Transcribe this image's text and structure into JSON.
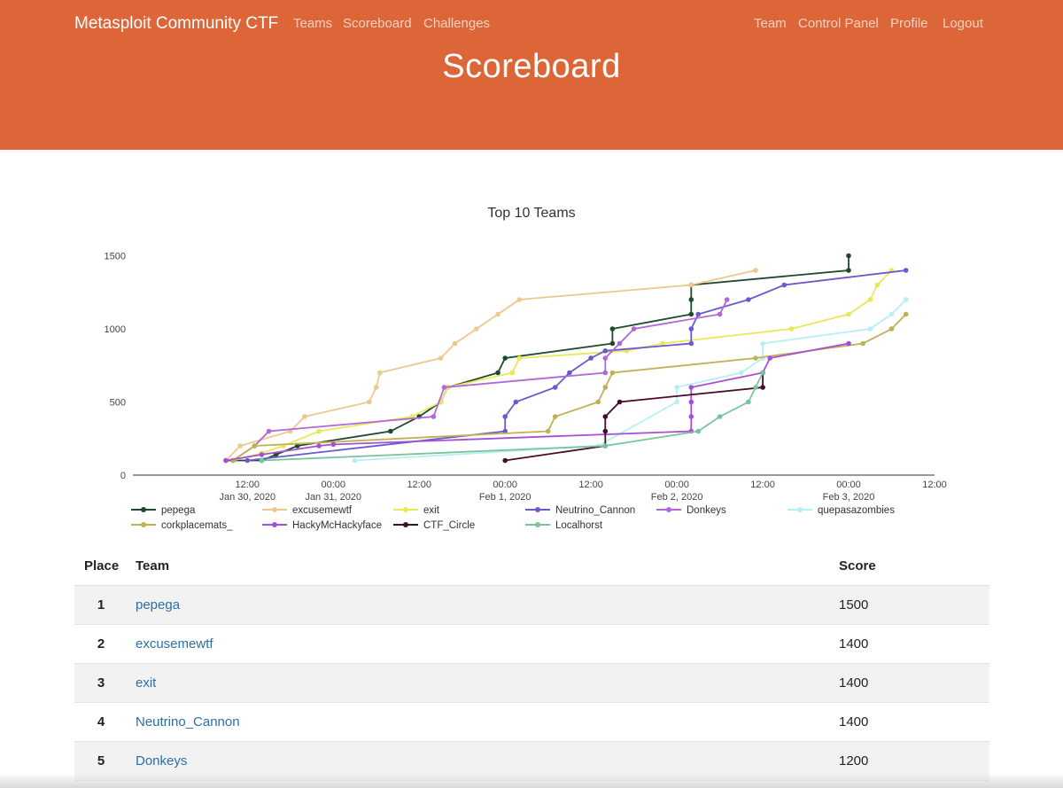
{
  "nav": {
    "brand": "Metasploit Community CTF",
    "left": [
      "Teams",
      "Scoreboard",
      "Challenges"
    ],
    "right": [
      "Team",
      "Control Panel",
      "Profile",
      "Logout"
    ]
  },
  "page_title": "Scoreboard",
  "chart_data": {
    "type": "line",
    "title": "Top 10 Teams",
    "xlabel": "",
    "ylabel": "",
    "xlim": [
      "2020-01-29 20:00",
      "2020-02-03 12:00"
    ],
    "ylim": [
      0,
      1600
    ],
    "yticks": [
      0,
      500,
      1000,
      1500
    ],
    "xticks": [
      {
        "t": "2020-01-30 12:00",
        "label": "12:00",
        "sublabel": "Jan 30, 2020"
      },
      {
        "t": "2020-01-31 00:00",
        "label": "00:00",
        "sublabel": "Jan 31, 2020"
      },
      {
        "t": "2020-01-31 12:00",
        "label": "12:00",
        "sublabel": ""
      },
      {
        "t": "2020-02-01 00:00",
        "label": "00:00",
        "sublabel": "Feb 1, 2020"
      },
      {
        "t": "2020-02-01 12:00",
        "label": "12:00",
        "sublabel": ""
      },
      {
        "t": "2020-02-02 00:00",
        "label": "00:00",
        "sublabel": "Feb 2, 2020"
      },
      {
        "t": "2020-02-02 12:00",
        "label": "12:00",
        "sublabel": ""
      },
      {
        "t": "2020-02-03 00:00",
        "label": "00:00",
        "sublabel": "Feb 3, 2020"
      },
      {
        "t": "2020-02-03 12:00",
        "label": "12:00",
        "sublabel": ""
      }
    ],
    "grid": false,
    "legend_position": "bottom",
    "series": [
      {
        "name": "pepega",
        "color": "#1f4a2c",
        "points": [
          [
            "2020-01-30 09:00",
            100
          ],
          [
            "2020-01-30 14:00",
            100
          ],
          [
            "2020-01-30 16:00",
            140
          ],
          [
            "2020-01-30 19:00",
            200
          ],
          [
            "2020-01-31 08:00",
            300
          ],
          [
            "2020-01-31 12:00",
            400
          ],
          [
            "2020-01-31 15:00",
            500
          ],
          [
            "2020-01-31 16:00",
            600
          ],
          [
            "2020-01-31 23:00",
            700
          ],
          [
            "2020-02-01 00:00",
            800
          ],
          [
            "2020-02-01 15:00",
            900
          ],
          [
            "2020-02-01 15:00",
            1000
          ],
          [
            "2020-02-02 02:00",
            1100
          ],
          [
            "2020-02-02 02:00",
            1200
          ],
          [
            "2020-02-02 02:00",
            1300
          ],
          [
            "2020-02-03 00:00",
            1400
          ],
          [
            "2020-02-03 00:00",
            1500
          ]
        ]
      },
      {
        "name": "excusemewtf",
        "color": "#ecc88c",
        "points": [
          [
            "2020-01-30 09:00",
            100
          ],
          [
            "2020-01-30 11:00",
            200
          ],
          [
            "2020-01-30 18:00",
            300
          ],
          [
            "2020-01-30 20:00",
            400
          ],
          [
            "2020-01-31 05:00",
            500
          ],
          [
            "2020-01-31 06:00",
            600
          ],
          [
            "2020-01-31 06:30",
            700
          ],
          [
            "2020-01-31 15:00",
            800
          ],
          [
            "2020-01-31 17:00",
            900
          ],
          [
            "2020-01-31 20:00",
            1000
          ],
          [
            "2020-01-31 23:00",
            1100
          ],
          [
            "2020-02-01 02:00",
            1200
          ],
          [
            "2020-02-02 02:00",
            1300
          ],
          [
            "2020-02-02 11:00",
            1400
          ]
        ]
      },
      {
        "name": "exit",
        "color": "#e9e75a",
        "points": [
          [
            "2020-01-30 10:00",
            100
          ],
          [
            "2020-01-30 14:00",
            150
          ],
          [
            "2020-01-30 17:00",
            200
          ],
          [
            "2020-01-30 22:00",
            300
          ],
          [
            "2020-01-31 11:00",
            400
          ],
          [
            "2020-01-31 15:00",
            500
          ],
          [
            "2020-01-31 16:00",
            600
          ],
          [
            "2020-02-01 01:00",
            700
          ],
          [
            "2020-02-01 02:00",
            800
          ],
          [
            "2020-02-01 17:00",
            850
          ],
          [
            "2020-02-01 22:00",
            900
          ],
          [
            "2020-02-02 16:00",
            1000
          ],
          [
            "2020-02-03 00:00",
            1100
          ],
          [
            "2020-02-03 03:00",
            1200
          ],
          [
            "2020-02-03 04:00",
            1300
          ],
          [
            "2020-02-03 06:00",
            1400
          ]
        ]
      },
      {
        "name": "Neutrino_Cannon",
        "color": "#6a5acd",
        "points": [
          [
            "2020-01-30 12:00",
            100
          ],
          [
            "2020-02-01 00:00",
            300
          ],
          [
            "2020-02-01 00:00",
            400
          ],
          [
            "2020-02-01 01:30",
            500
          ],
          [
            "2020-02-01 07:00",
            600
          ],
          [
            "2020-02-01 09:00",
            700
          ],
          [
            "2020-02-01 12:00",
            800
          ],
          [
            "2020-02-01 14:00",
            850
          ],
          [
            "2020-02-02 02:00",
            900
          ],
          [
            "2020-02-02 02:00",
            1000
          ],
          [
            "2020-02-02 03:00",
            1100
          ],
          [
            "2020-02-02 10:00",
            1200
          ],
          [
            "2020-02-02 15:00",
            1300
          ],
          [
            "2020-02-03 08:00",
            1400
          ]
        ]
      },
      {
        "name": "Donkeys",
        "color": "#b267d8",
        "points": [
          [
            "2020-01-30 10:00",
            100
          ],
          [
            "2020-01-30 13:00",
            200
          ],
          [
            "2020-01-30 15:00",
            300
          ],
          [
            "2020-01-31 14:00",
            400
          ],
          [
            "2020-01-31 15:30",
            600
          ],
          [
            "2020-02-01 14:00",
            700
          ],
          [
            "2020-02-01 14:00",
            800
          ],
          [
            "2020-02-01 16:00",
            900
          ],
          [
            "2020-02-01 18:00",
            1000
          ],
          [
            "2020-02-02 06:00",
            1100
          ],
          [
            "2020-02-02 07:00",
            1200
          ]
        ]
      },
      {
        "name": "quepasazombies",
        "color": "#b8eef4",
        "points": [
          [
            "2020-01-31 03:00",
            100
          ],
          [
            "2020-02-01 13:00",
            200
          ],
          [
            "2020-02-02 00:00",
            500
          ],
          [
            "2020-02-02 00:00",
            600
          ],
          [
            "2020-02-02 09:00",
            700
          ],
          [
            "2020-02-02 12:00",
            800
          ],
          [
            "2020-02-02 12:00",
            900
          ],
          [
            "2020-02-03 03:00",
            1000
          ],
          [
            "2020-02-03 06:00",
            1100
          ],
          [
            "2020-02-03 08:00",
            1200
          ]
        ]
      },
      {
        "name": "corkplacemats_",
        "color": "#c0b155",
        "points": [
          [
            "2020-01-30 10:00",
            100
          ],
          [
            "2020-01-30 13:00",
            200
          ],
          [
            "2020-02-01 06:00",
            300
          ],
          [
            "2020-02-01 07:00",
            400
          ],
          [
            "2020-02-01 13:00",
            500
          ],
          [
            "2020-02-01 14:00",
            600
          ],
          [
            "2020-02-01 15:00",
            700
          ],
          [
            "2020-02-02 11:00",
            800
          ],
          [
            "2020-02-03 02:00",
            900
          ],
          [
            "2020-02-03 06:00",
            1000
          ],
          [
            "2020-02-03 08:00",
            1100
          ]
        ]
      },
      {
        "name": "HackyMcHackyface",
        "color": "#a64fd6",
        "points": [
          [
            "2020-01-30 09:00",
            100
          ],
          [
            "2020-01-30 14:00",
            140
          ],
          [
            "2020-01-30 22:00",
            200
          ],
          [
            "2020-01-31 00:00",
            210
          ],
          [
            "2020-02-02 02:00",
            300
          ],
          [
            "2020-02-02 02:00",
            400
          ],
          [
            "2020-02-02 02:00",
            500
          ],
          [
            "2020-02-02 02:00",
            600
          ],
          [
            "2020-02-02 12:00",
            700
          ],
          [
            "2020-02-02 13:00",
            800
          ],
          [
            "2020-02-03 00:00",
            900
          ]
        ]
      },
      {
        "name": "CTF_Circle",
        "color": "#4a0a2e",
        "points": [
          [
            "2020-02-01 00:00",
            100
          ],
          [
            "2020-02-01 14:00",
            200
          ],
          [
            "2020-02-01 14:00",
            300
          ],
          [
            "2020-02-01 14:00",
            400
          ],
          [
            "2020-02-01 16:00",
            500
          ],
          [
            "2020-02-02 12:00",
            600
          ],
          [
            "2020-02-02 12:00",
            700
          ]
        ]
      },
      {
        "name": "Localhorst",
        "color": "#78c49c",
        "points": [
          [
            "2020-01-30 14:00",
            100
          ],
          [
            "2020-02-01 14:00",
            200
          ],
          [
            "2020-02-02 03:00",
            300
          ],
          [
            "2020-02-02 06:00",
            400
          ],
          [
            "2020-02-02 10:00",
            500
          ],
          [
            "2020-02-02 11:00",
            600
          ],
          [
            "2020-02-02 12:00",
            700
          ]
        ]
      }
    ]
  },
  "table": {
    "headers": {
      "place": "Place",
      "team": "Team",
      "score": "Score"
    },
    "rows": [
      {
        "place": "1",
        "team": "pepega",
        "score": "1500"
      },
      {
        "place": "2",
        "team": "excusemewtf",
        "score": "1400"
      },
      {
        "place": "3",
        "team": "exit",
        "score": "1400"
      },
      {
        "place": "4",
        "team": "Neutrino_Cannon",
        "score": "1400"
      },
      {
        "place": "5",
        "team": "Donkeys",
        "score": "1200"
      }
    ]
  }
}
